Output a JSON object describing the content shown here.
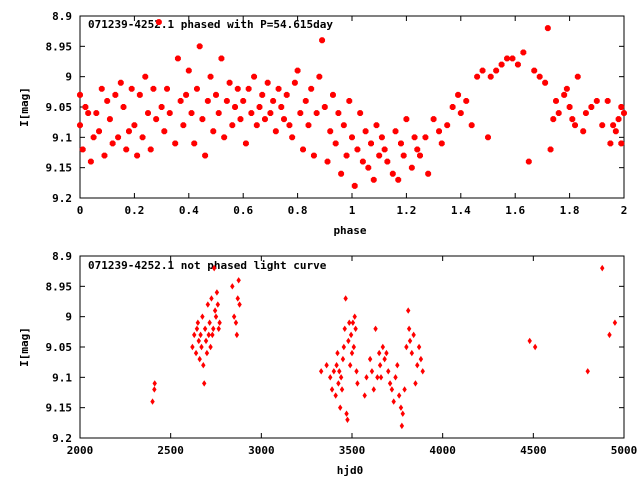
{
  "colors": {
    "points": "#ff0000",
    "frame": "#000000",
    "background": "#ffffff"
  },
  "chart_data": [
    {
      "type": "scatter",
      "title": "071239-4252.1 phased with P=54.615day",
      "xlabel": "phase",
      "ylabel": "I[mag]",
      "xlim": [
        0,
        2
      ],
      "ylim": [
        8.9,
        9.2
      ],
      "y_inverted": true,
      "grid": false,
      "x_ticks": [
        "0",
        "0.2",
        "0.4",
        "0.6",
        "0.8",
        "1",
        "1.2",
        "1.4",
        "1.6",
        "1.8",
        "2"
      ],
      "y_ticks": [
        "8.9",
        "8.95",
        "9",
        "9.05",
        "9.1",
        "9.15",
        "9.2"
      ],
      "points": [
        [
          0.0,
          9.03
        ],
        [
          0.0,
          9.08
        ],
        [
          0.01,
          9.12
        ],
        [
          0.02,
          9.05
        ],
        [
          0.03,
          9.06
        ],
        [
          0.04,
          9.14
        ],
        [
          0.05,
          9.1
        ],
        [
          0.06,
          9.06
        ],
        [
          0.07,
          9.09
        ],
        [
          0.08,
          9.02
        ],
        [
          0.09,
          9.13
        ],
        [
          0.1,
          9.04
        ],
        [
          0.11,
          9.07
        ],
        [
          0.12,
          9.11
        ],
        [
          0.13,
          9.03
        ],
        [
          0.14,
          9.1
        ],
        [
          0.15,
          9.01
        ],
        [
          0.16,
          9.05
        ],
        [
          0.17,
          9.12
        ],
        [
          0.18,
          9.09
        ],
        [
          0.19,
          9.02
        ],
        [
          0.2,
          9.08
        ],
        [
          0.21,
          9.13
        ],
        [
          0.22,
          9.03
        ],
        [
          0.23,
          9.1
        ],
        [
          0.24,
          9.0
        ],
        [
          0.25,
          9.06
        ],
        [
          0.26,
          9.12
        ],
        [
          0.27,
          9.02
        ],
        [
          0.28,
          9.07
        ],
        [
          0.29,
          8.91
        ],
        [
          0.3,
          9.05
        ],
        [
          0.31,
          9.09
        ],
        [
          0.32,
          9.02
        ],
        [
          0.33,
          9.06
        ],
        [
          0.35,
          9.11
        ],
        [
          0.36,
          8.97
        ],
        [
          0.37,
          9.04
        ],
        [
          0.38,
          9.08
        ],
        [
          0.39,
          9.03
        ],
        [
          0.4,
          8.99
        ],
        [
          0.41,
          9.06
        ],
        [
          0.42,
          9.11
        ],
        [
          0.43,
          9.02
        ],
        [
          0.44,
          8.95
        ],
        [
          0.45,
          9.07
        ],
        [
          0.46,
          9.13
        ],
        [
          0.47,
          9.04
        ],
        [
          0.48,
          9.0
        ],
        [
          0.49,
          9.09
        ],
        [
          0.5,
          9.03
        ],
        [
          0.51,
          9.06
        ],
        [
          0.52,
          8.97
        ],
        [
          0.53,
          9.1
        ],
        [
          0.54,
          9.04
        ],
        [
          0.55,
          9.01
        ],
        [
          0.56,
          9.08
        ],
        [
          0.57,
          9.05
        ],
        [
          0.58,
          9.02
        ],
        [
          0.59,
          9.07
        ],
        [
          0.6,
          9.04
        ],
        [
          0.61,
          9.11
        ],
        [
          0.62,
          9.02
        ],
        [
          0.63,
          9.06
        ],
        [
          0.64,
          9.0
        ],
        [
          0.65,
          9.08
        ],
        [
          0.66,
          9.05
        ],
        [
          0.67,
          9.03
        ],
        [
          0.68,
          9.07
        ],
        [
          0.69,
          9.01
        ],
        [
          0.7,
          9.06
        ],
        [
          0.71,
          9.04
        ],
        [
          0.72,
          9.09
        ],
        [
          0.73,
          9.02
        ],
        [
          0.74,
          9.05
        ],
        [
          0.75,
          9.07
        ],
        [
          0.76,
          9.03
        ],
        [
          0.77,
          9.08
        ],
        [
          0.78,
          9.1
        ],
        [
          0.79,
          9.01
        ],
        [
          0.8,
          8.99
        ],
        [
          0.81,
          9.06
        ],
        [
          0.82,
          9.12
        ],
        [
          0.83,
          9.04
        ],
        [
          0.84,
          9.08
        ],
        [
          0.85,
          9.02
        ],
        [
          0.86,
          9.13
        ],
        [
          0.87,
          9.06
        ],
        [
          0.88,
          9.0
        ],
        [
          0.89,
          8.94
        ],
        [
          0.9,
          9.05
        ],
        [
          0.91,
          9.14
        ],
        [
          0.92,
          9.09
        ],
        [
          0.93,
          9.03
        ],
        [
          0.94,
          9.11
        ],
        [
          0.95,
          9.06
        ],
        [
          0.96,
          9.16
        ],
        [
          0.97,
          9.08
        ],
        [
          0.98,
          9.13
        ],
        [
          0.99,
          9.04
        ],
        [
          1.0,
          9.1
        ],
        [
          1.01,
          9.18
        ],
        [
          1.02,
          9.12
        ],
        [
          1.03,
          9.06
        ],
        [
          1.04,
          9.14
        ],
        [
          1.05,
          9.09
        ],
        [
          1.06,
          9.15
        ],
        [
          1.07,
          9.11
        ],
        [
          1.08,
          9.17
        ],
        [
          1.09,
          9.08
        ],
        [
          1.1,
          9.13
        ],
        [
          1.11,
          9.1
        ],
        [
          1.12,
          9.12
        ],
        [
          1.13,
          9.14
        ],
        [
          1.15,
          9.16
        ],
        [
          1.16,
          9.09
        ],
        [
          1.17,
          9.17
        ],
        [
          1.18,
          9.11
        ],
        [
          1.19,
          9.13
        ],
        [
          1.2,
          9.07
        ],
        [
          1.22,
          9.15
        ],
        [
          1.23,
          9.1
        ],
        [
          1.24,
          9.12
        ],
        [
          1.25,
          9.13
        ],
        [
          1.27,
          9.1
        ],
        [
          1.28,
          9.16
        ],
        [
          1.3,
          9.07
        ],
        [
          1.32,
          9.09
        ],
        [
          1.33,
          9.11
        ],
        [
          1.35,
          9.08
        ],
        [
          1.37,
          9.05
        ],
        [
          1.39,
          9.03
        ],
        [
          1.4,
          9.06
        ],
        [
          1.42,
          9.04
        ],
        [
          1.44,
          9.08
        ],
        [
          1.46,
          9.0
        ],
        [
          1.48,
          8.99
        ],
        [
          1.5,
          9.1
        ],
        [
          1.51,
          9.0
        ],
        [
          1.53,
          8.99
        ],
        [
          1.55,
          8.98
        ],
        [
          1.57,
          8.97
        ],
        [
          1.59,
          8.97
        ],
        [
          1.61,
          8.98
        ],
        [
          1.63,
          8.96
        ],
        [
          1.65,
          9.14
        ],
        [
          1.67,
          8.99
        ],
        [
          1.69,
          9.0
        ],
        [
          1.71,
          9.01
        ],
        [
          1.72,
          8.92
        ],
        [
          1.73,
          9.12
        ],
        [
          1.74,
          9.07
        ],
        [
          1.75,
          9.04
        ],
        [
          1.76,
          9.06
        ],
        [
          1.78,
          9.03
        ],
        [
          1.79,
          9.02
        ],
        [
          1.8,
          9.05
        ],
        [
          1.81,
          9.07
        ],
        [
          1.82,
          9.08
        ],
        [
          1.83,
          9.0
        ],
        [
          1.85,
          9.09
        ],
        [
          1.86,
          9.06
        ],
        [
          1.88,
          9.05
        ],
        [
          1.9,
          9.04
        ],
        [
          1.92,
          9.08
        ],
        [
          1.94,
          9.04
        ],
        [
          1.95,
          9.11
        ],
        [
          1.96,
          9.08
        ],
        [
          1.97,
          9.09
        ],
        [
          1.98,
          9.07
        ],
        [
          1.99,
          9.05
        ],
        [
          1.99,
          9.11
        ],
        [
          2.0,
          9.06
        ]
      ]
    },
    {
      "type": "scatter",
      "title": "071239-4252.1 not phased light curve",
      "xlabel": "hjd0",
      "ylabel": "I[mag]",
      "xlim": [
        2000,
        5000
      ],
      "ylim": [
        8.9,
        9.2
      ],
      "y_inverted": true,
      "grid": false,
      "x_ticks": [
        "2000",
        "2500",
        "3000",
        "3500",
        "4000",
        "4500",
        "5000"
      ],
      "y_ticks": [
        "8.9",
        "8.95",
        "9",
        "9.05",
        "9.1",
        "9.15",
        "9.2"
      ],
      "points": [
        [
          2400,
          9.14
        ],
        [
          2410,
          9.12
        ],
        [
          2412,
          9.11
        ],
        [
          2620,
          9.05
        ],
        [
          2630,
          9.03
        ],
        [
          2640,
          9.06
        ],
        [
          2645,
          9.02
        ],
        [
          2650,
          9.01
        ],
        [
          2655,
          9.04
        ],
        [
          2660,
          9.07
        ],
        [
          2665,
          9.03
        ],
        [
          2670,
          9.05
        ],
        [
          2675,
          9.0
        ],
        [
          2680,
          9.08
        ],
        [
          2685,
          9.11
        ],
        [
          2690,
          9.02
        ],
        [
          2695,
          9.04
        ],
        [
          2700,
          9.06
        ],
        [
          2705,
          8.98
        ],
        [
          2710,
          9.03
        ],
        [
          2715,
          9.01
        ],
        [
          2720,
          9.05
        ],
        [
          2725,
          8.97
        ],
        [
          2730,
          9.03
        ],
        [
          2735,
          9.02
        ],
        [
          2740,
          8.92
        ],
        [
          2745,
          8.99
        ],
        [
          2750,
          9.0
        ],
        [
          2755,
          8.96
        ],
        [
          2760,
          8.98
        ],
        [
          2765,
          9.02
        ],
        [
          2770,
          9.01
        ],
        [
          2840,
          8.95
        ],
        [
          2850,
          9.0
        ],
        [
          2860,
          9.01
        ],
        [
          2865,
          9.03
        ],
        [
          2870,
          8.97
        ],
        [
          2875,
          8.94
        ],
        [
          2880,
          8.98
        ],
        [
          3330,
          9.09
        ],
        [
          3360,
          9.08
        ],
        [
          3380,
          9.1
        ],
        [
          3390,
          9.12
        ],
        [
          3400,
          9.09
        ],
        [
          3410,
          9.13
        ],
        [
          3415,
          9.08
        ],
        [
          3420,
          9.06
        ],
        [
          3425,
          9.11
        ],
        [
          3430,
          9.09
        ],
        [
          3435,
          9.15
        ],
        [
          3440,
          9.1
        ],
        [
          3445,
          9.12
        ],
        [
          3450,
          9.07
        ],
        [
          3455,
          9.05
        ],
        [
          3460,
          9.02
        ],
        [
          3465,
          8.97
        ],
        [
          3470,
          9.16
        ],
        [
          3475,
          9.17
        ],
        [
          3480,
          9.04
        ],
        [
          3485,
          9.01
        ],
        [
          3490,
          9.08
        ],
        [
          3495,
          9.03
        ],
        [
          3500,
          9.06
        ],
        [
          3505,
          9.01
        ],
        [
          3510,
          9.05
        ],
        [
          3515,
          9.0
        ],
        [
          3520,
          9.02
        ],
        [
          3525,
          9.09
        ],
        [
          3530,
          9.11
        ],
        [
          3570,
          9.13
        ],
        [
          3580,
          9.1
        ],
        [
          3600,
          9.07
        ],
        [
          3610,
          9.09
        ],
        [
          3620,
          9.12
        ],
        [
          3630,
          9.02
        ],
        [
          3640,
          9.1
        ],
        [
          3650,
          9.06
        ],
        [
          3655,
          9.08
        ],
        [
          3660,
          9.1
        ],
        [
          3670,
          9.05
        ],
        [
          3680,
          9.07
        ],
        [
          3690,
          9.06
        ],
        [
          3700,
          9.09
        ],
        [
          3710,
          9.11
        ],
        [
          3720,
          9.12
        ],
        [
          3730,
          9.14
        ],
        [
          3740,
          9.1
        ],
        [
          3750,
          9.08
        ],
        [
          3760,
          9.13
        ],
        [
          3770,
          9.15
        ],
        [
          3775,
          9.18
        ],
        [
          3780,
          9.16
        ],
        [
          3790,
          9.12
        ],
        [
          3800,
          9.05
        ],
        [
          3810,
          8.99
        ],
        [
          3815,
          9.02
        ],
        [
          3820,
          9.04
        ],
        [
          3830,
          9.06
        ],
        [
          3840,
          9.03
        ],
        [
          3850,
          9.11
        ],
        [
          3860,
          9.08
        ],
        [
          3870,
          9.05
        ],
        [
          3880,
          9.07
        ],
        [
          3890,
          9.09
        ],
        [
          4480,
          9.04
        ],
        [
          4510,
          9.05
        ],
        [
          4800,
          9.09
        ],
        [
          4880,
          8.92
        ],
        [
          4920,
          9.03
        ],
        [
          4950,
          9.01
        ]
      ]
    }
  ]
}
